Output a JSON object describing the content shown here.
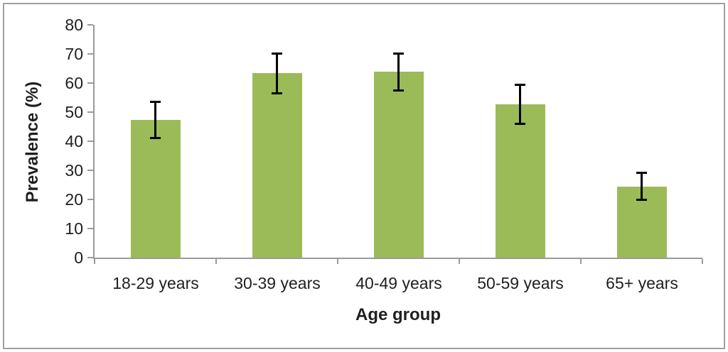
{
  "figure": {
    "background": "#ffffff",
    "border_color": "#a0a0a0"
  },
  "chart_data": {
    "type": "bar",
    "title": "",
    "xlabel": "Age group",
    "ylabel": "Prevalence (%)",
    "categories": [
      "18-29 years",
      "30-39 years",
      "40-49 years",
      "50-59 years",
      "65+ years"
    ],
    "series": [
      {
        "name": "Prevalence (%)",
        "values": [
          47.3,
          63.5,
          64.0,
          52.6,
          24.5
        ],
        "error_upper": [
          53.7,
          70.3,
          70.2,
          59.4,
          29.2
        ],
        "error_lower": [
          41.0,
          56.3,
          57.4,
          45.8,
          19.8
        ]
      }
    ],
    "ylim": [
      0,
      80
    ],
    "yticks": [
      0,
      10,
      20,
      30,
      40,
      50,
      60,
      70,
      80
    ],
    "grid": false,
    "legend": false,
    "bar_color": "#9bbb59",
    "error_bar_color": "#000000",
    "axis_color": "#9a9a9a",
    "text_color": "#1f1f1f"
  }
}
